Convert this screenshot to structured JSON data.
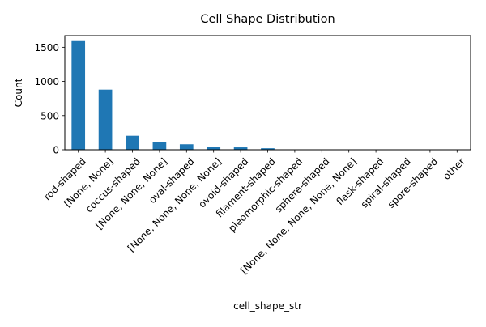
{
  "chart_data": {
    "type": "bar",
    "title": "Cell Shape Distribution",
    "xlabel": "cell_shape_str",
    "ylabel": "Count",
    "categories": [
      "rod-shaped",
      "[None, None]",
      "coccus-shaped",
      "[None, None, None]",
      "oval-shaped",
      "[None, None, None, None]",
      "ovoid-shaped",
      "filament-shaped",
      "pleomorphic-shaped",
      "sphere-shaped",
      "[None, None, None, None, None]",
      "flask-shaped",
      "spiral-shaped",
      "spore-shaped",
      "other"
    ],
    "values": [
      1590,
      880,
      205,
      115,
      80,
      45,
      35,
      22,
      3,
      2,
      2,
      1,
      1,
      1,
      1
    ],
    "yticks": [
      0,
      500,
      1000,
      1500
    ],
    "ylim": [
      0,
      1670
    ],
    "grid": false,
    "legend": "none",
    "bar_color": "#1f77b4"
  }
}
